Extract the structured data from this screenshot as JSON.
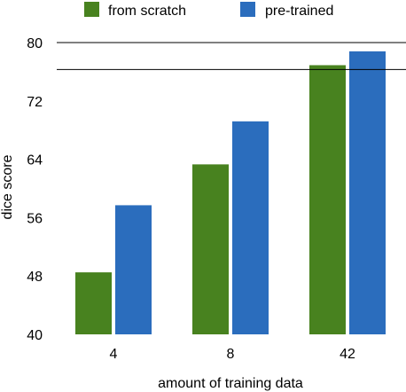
{
  "chart_data": {
    "type": "bar",
    "title": "",
    "xlabel": "amount of training data",
    "ylabel": "dice score",
    "categories": [
      "4",
      "8",
      "42"
    ],
    "series": [
      {
        "name": "from scratch",
        "values": [
          48.5,
          63.3,
          76.9
        ],
        "color": "#48821f"
      },
      {
        "name": "pre-trained",
        "values": [
          57.7,
          69.2,
          78.8
        ],
        "color": "#2b6dbd"
      }
    ],
    "ylim": [
      40,
      80
    ],
    "yticks": [
      40,
      48,
      56,
      64,
      72,
      80
    ],
    "reference_lines": [
      80,
      76.3
    ],
    "legend_position": "top",
    "grid": false
  }
}
